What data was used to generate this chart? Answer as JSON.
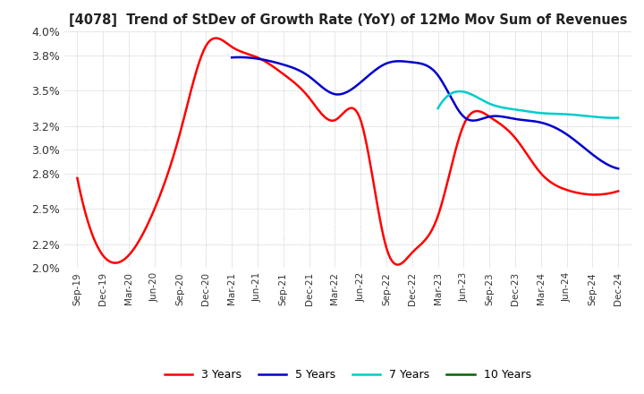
{
  "title": "[4078]  Trend of StDev of Growth Rate (YoY) of 12Mo Mov Sum of Revenues",
  "ylim": [
    0.02,
    0.04
  ],
  "yticks": [
    0.02,
    0.022,
    0.025,
    0.028,
    0.03,
    0.032,
    0.035,
    0.038,
    0.04
  ],
  "ytick_labels": [
    "2.0%",
    "2.2%",
    "2.5%",
    "2.8%",
    "3.0%",
    "3.2%",
    "3.5%",
    "3.8%",
    "4.0%"
  ],
  "colors": {
    "3y": "#ff0000",
    "5y": "#0000cc",
    "7y": "#00cccc",
    "10y": "#006600"
  },
  "legend_labels": [
    "3 Years",
    "5 Years",
    "7 Years",
    "10 Years"
  ],
  "background_color": "#ffffff",
  "grid_color": "#aaaaaa",
  "x_labels": [
    "Sep-19",
    "Dec-19",
    "Mar-20",
    "Jun-20",
    "Sep-20",
    "Dec-20",
    "Mar-21",
    "Jun-21",
    "Sep-21",
    "Dec-21",
    "Mar-22",
    "Jun-22",
    "Sep-22",
    "Dec-22",
    "Mar-23",
    "Jun-23",
    "Sep-23",
    "Dec-23",
    "Mar-24",
    "Jun-24",
    "Sep-24",
    "Dec-24"
  ],
  "series_3y": [
    0.0276,
    0.02105,
    0.02108,
    0.025,
    0.0315,
    0.0388,
    0.0387,
    0.0378,
    0.0364,
    0.0344,
    0.0325,
    0.0325,
    0.0217,
    0.0213,
    0.0244,
    0.0321,
    0.0328,
    0.031,
    0.028,
    0.0266,
    0.0262,
    0.0265
  ],
  "series_5y": [
    null,
    null,
    null,
    null,
    null,
    null,
    0.0378,
    0.0377,
    0.0372,
    0.0362,
    0.0347,
    0.0357,
    0.0373,
    0.0374,
    0.0363,
    0.0328,
    0.0328,
    0.0326,
    0.0323,
    0.0313,
    0.0296,
    0.0284
  ],
  "series_7y": [
    null,
    null,
    null,
    null,
    null,
    null,
    null,
    null,
    null,
    null,
    null,
    null,
    null,
    null,
    0.0335,
    0.0349,
    0.0339,
    0.0334,
    0.0331,
    0.033,
    0.0328,
    0.0327
  ],
  "series_10y": [
    null,
    null,
    null,
    null,
    null,
    null,
    null,
    null,
    null,
    null,
    null,
    null,
    null,
    null,
    null,
    null,
    null,
    null,
    null,
    null,
    null,
    null
  ]
}
